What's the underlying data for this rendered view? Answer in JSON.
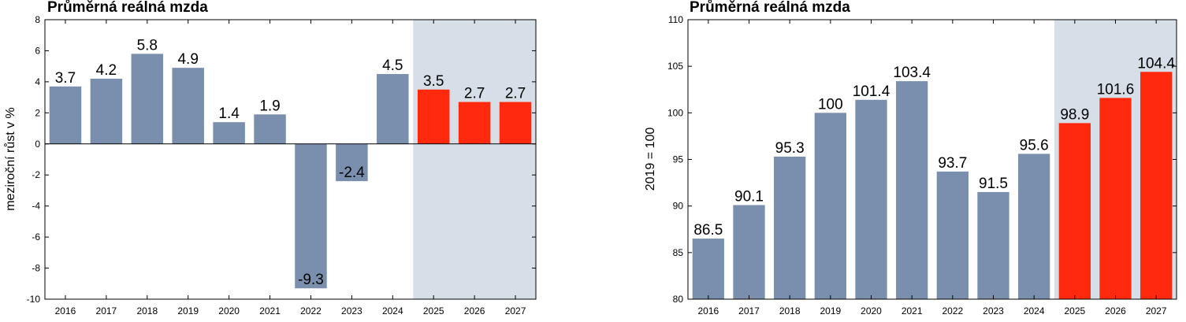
{
  "chart_data": [
    {
      "type": "bar",
      "title": "Průměrná reálná mzda",
      "xlabel": "",
      "ylabel": "meziroční růst v %",
      "categories": [
        "2016",
        "2017",
        "2018",
        "2019",
        "2020",
        "2021",
        "2022",
        "2023",
        "2024",
        "2025",
        "2026",
        "2027"
      ],
      "values": [
        3.7,
        4.2,
        5.8,
        4.9,
        1.4,
        1.9,
        -9.3,
        -2.4,
        4.5,
        3.5,
        2.7,
        2.7
      ],
      "data_labels": [
        "3.7",
        "4.2",
        "5.8",
        "4.9",
        "1.4",
        "1.9",
        "-9.3",
        "-2.4",
        "4.5",
        "3.5",
        "2.7",
        "2.7"
      ],
      "ylim": [
        -10,
        8
      ],
      "yticks": [
        -10,
        -8,
        -6,
        -4,
        -2,
        0,
        2,
        4,
        6,
        8
      ],
      "forecast_from": "2025",
      "grid": false,
      "colors": {
        "actual": "#7a8fae",
        "forecast": "#ff2a0e",
        "forecast_band": "#d6dfe8"
      }
    },
    {
      "type": "bar",
      "title": "Průměrná reálná mzda",
      "xlabel": "",
      "ylabel": "2019 = 100",
      "categories": [
        "2016",
        "2017",
        "2018",
        "2019",
        "2020",
        "2021",
        "2022",
        "2023",
        "2024",
        "2025",
        "2026",
        "2027"
      ],
      "values": [
        86.5,
        90.1,
        95.3,
        100,
        101.4,
        103.4,
        93.7,
        91.5,
        95.6,
        98.9,
        101.6,
        104.4
      ],
      "data_labels": [
        "86.5",
        "90.1",
        "95.3",
        "100",
        "101.4",
        "103.4",
        "93.7",
        "91.5",
        "95.6",
        "98.9",
        "101.6",
        "104.4"
      ],
      "ylim": [
        80,
        110
      ],
      "yticks": [
        80,
        85,
        90,
        95,
        100,
        105,
        110
      ],
      "forecast_from": "2025",
      "grid": false,
      "colors": {
        "actual": "#7a8fae",
        "forecast": "#ff2a0e",
        "forecast_band": "#d6dfe8"
      }
    }
  ]
}
